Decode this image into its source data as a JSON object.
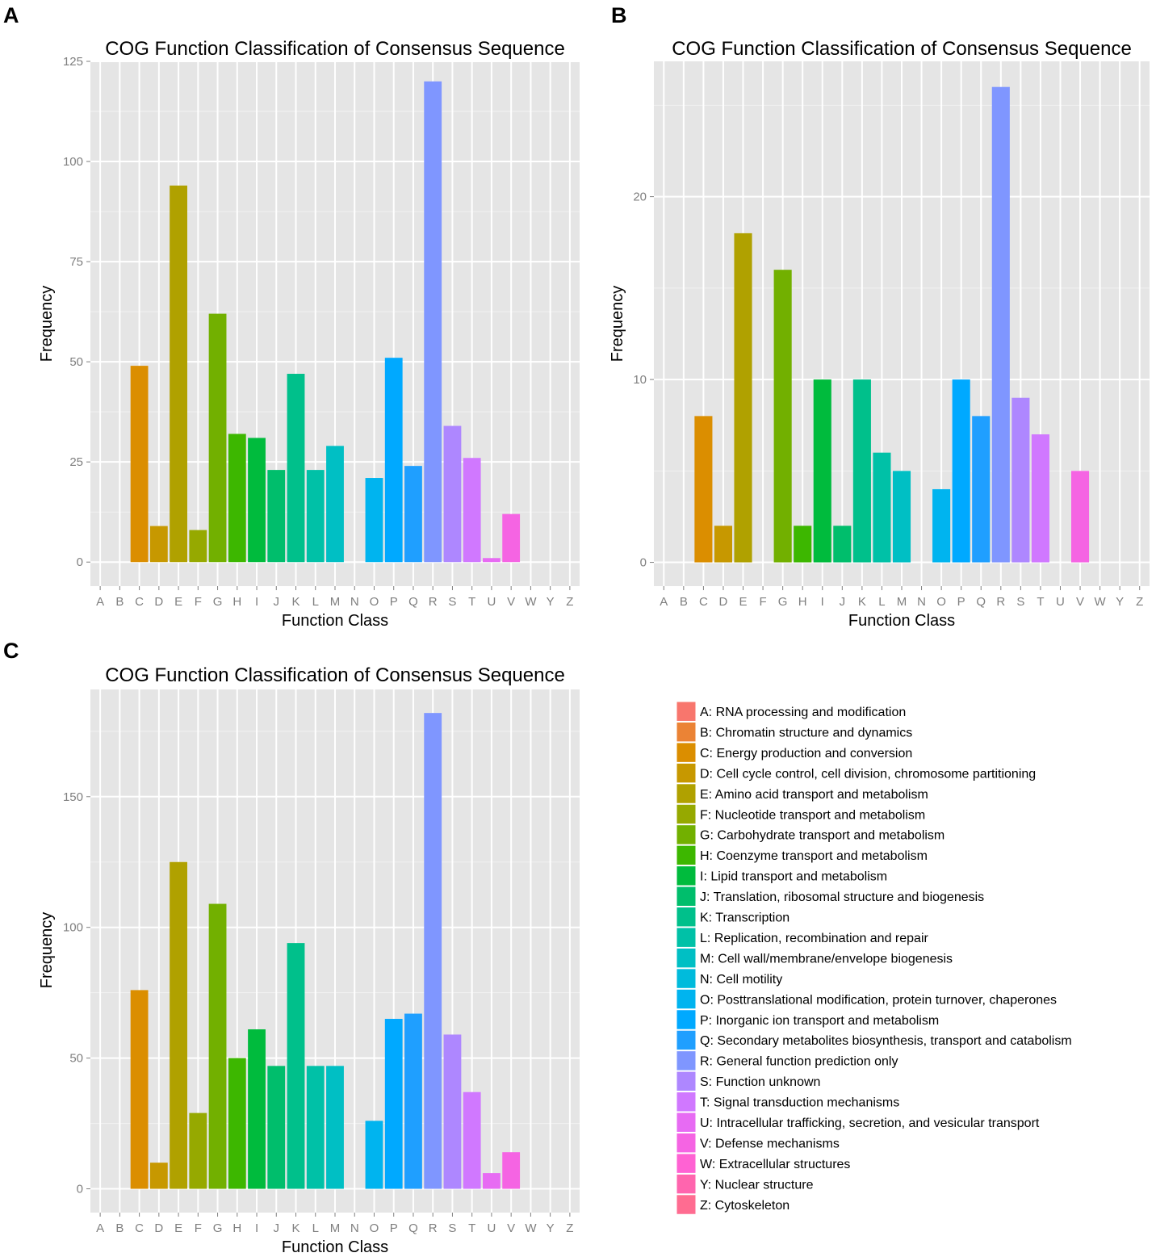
{
  "categories": [
    "A",
    "B",
    "C",
    "D",
    "E",
    "F",
    "G",
    "H",
    "I",
    "J",
    "K",
    "L",
    "M",
    "N",
    "O",
    "P",
    "Q",
    "R",
    "S",
    "T",
    "U",
    "V",
    "W",
    "Y",
    "Z"
  ],
  "colors": [
    "#F8766D",
    "#EB8335",
    "#DB8E00",
    "#C79800",
    "#B0A100",
    "#96A900",
    "#72B000",
    "#3DB700",
    "#00BB3D",
    "#00BE6C",
    "#00C08B",
    "#00C1A7",
    "#00BFC4",
    "#00BBDC",
    "#00B4EF",
    "#00A9FF",
    "#1F9FFF",
    "#7F96FF",
    "#AE87FF",
    "#D078FF",
    "#E76BF3",
    "#F564E3",
    "#FF62D3",
    "#FF65AE",
    "#FF6C91"
  ],
  "chart_data": [
    {
      "panel": "A",
      "type": "bar",
      "title": "COG Function Classification of Consensus Sequence",
      "xlabel": "Function Class",
      "ylabel": "Frequency",
      "categories": [
        "A",
        "B",
        "C",
        "D",
        "E",
        "F",
        "G",
        "H",
        "I",
        "J",
        "K",
        "L",
        "M",
        "N",
        "O",
        "P",
        "Q",
        "R",
        "S",
        "T",
        "U",
        "V",
        "W",
        "Y",
        "Z"
      ],
      "values": [
        0,
        0,
        49,
        9,
        94,
        8,
        62,
        32,
        31,
        23,
        47,
        23,
        29,
        0,
        21,
        51,
        24,
        120,
        34,
        26,
        1,
        12,
        0,
        0,
        0
      ],
      "ylim": [
        -6,
        125
      ],
      "yticks": [
        0,
        25,
        50,
        75,
        100,
        125
      ]
    },
    {
      "panel": "B",
      "type": "bar",
      "title": "COG Function Classification of Consensus Sequence",
      "xlabel": "Function Class",
      "ylabel": "Frequency",
      "categories": [
        "A",
        "B",
        "C",
        "D",
        "E",
        "F",
        "G",
        "H",
        "I",
        "J",
        "K",
        "L",
        "M",
        "N",
        "O",
        "P",
        "Q",
        "R",
        "S",
        "T",
        "U",
        "V",
        "W",
        "Y",
        "Z"
      ],
      "values": [
        0,
        0,
        8,
        2,
        18,
        0,
        16,
        2,
        10,
        2,
        10,
        6,
        5,
        0,
        4,
        10,
        8,
        26,
        9,
        7,
        0,
        5,
        0,
        0,
        0
      ],
      "ylim": [
        -1.3,
        27.4
      ],
      "yticks": [
        0,
        10,
        20
      ]
    },
    {
      "panel": "C",
      "type": "bar",
      "title": "COG Function Classification of Consensus Sequence",
      "xlabel": "Function Class",
      "ylabel": "Frequency",
      "categories": [
        "A",
        "B",
        "C",
        "D",
        "E",
        "F",
        "G",
        "H",
        "I",
        "J",
        "K",
        "L",
        "M",
        "N",
        "O",
        "P",
        "Q",
        "R",
        "S",
        "T",
        "U",
        "V",
        "W",
        "Y",
        "Z"
      ],
      "values": [
        0,
        0,
        76,
        10,
        125,
        29,
        109,
        50,
        61,
        47,
        94,
        47,
        47,
        0,
        26,
        65,
        67,
        182,
        59,
        37,
        6,
        14,
        0,
        0,
        0
      ],
      "ylim": [
        -9.1,
        191
      ],
      "yticks": [
        0,
        50,
        100,
        150
      ]
    }
  ],
  "legend": [
    "A: RNA processing and modification",
    "B: Chromatin structure and dynamics",
    "C: Energy production and conversion",
    "D: Cell cycle control, cell division, chromosome partitioning",
    "E: Amino acid transport and metabolism",
    "F: Nucleotide transport and metabolism",
    "G: Carbohydrate transport and metabolism",
    "H: Coenzyme transport and metabolism",
    "I: Lipid transport and metabolism",
    "J: Translation, ribosomal structure and biogenesis",
    "K: Transcription",
    "L: Replication, recombination and repair",
    "M: Cell wall/membrane/envelope biogenesis",
    "N: Cell motility",
    "O: Posttranslational modification, protein turnover, chaperones",
    "P: Inorganic ion transport and metabolism",
    "Q: Secondary metabolites biosynthesis, transport and catabolism",
    "R: General function prediction only",
    "S: Function unknown",
    "T: Signal transduction mechanisms",
    "U: Intracellular trafficking, secretion, and vesicular transport",
    "V: Defense mechanisms",
    "W: Extracellular structures",
    "Y: Nuclear structure",
    "Z: Cytoskeleton"
  ]
}
